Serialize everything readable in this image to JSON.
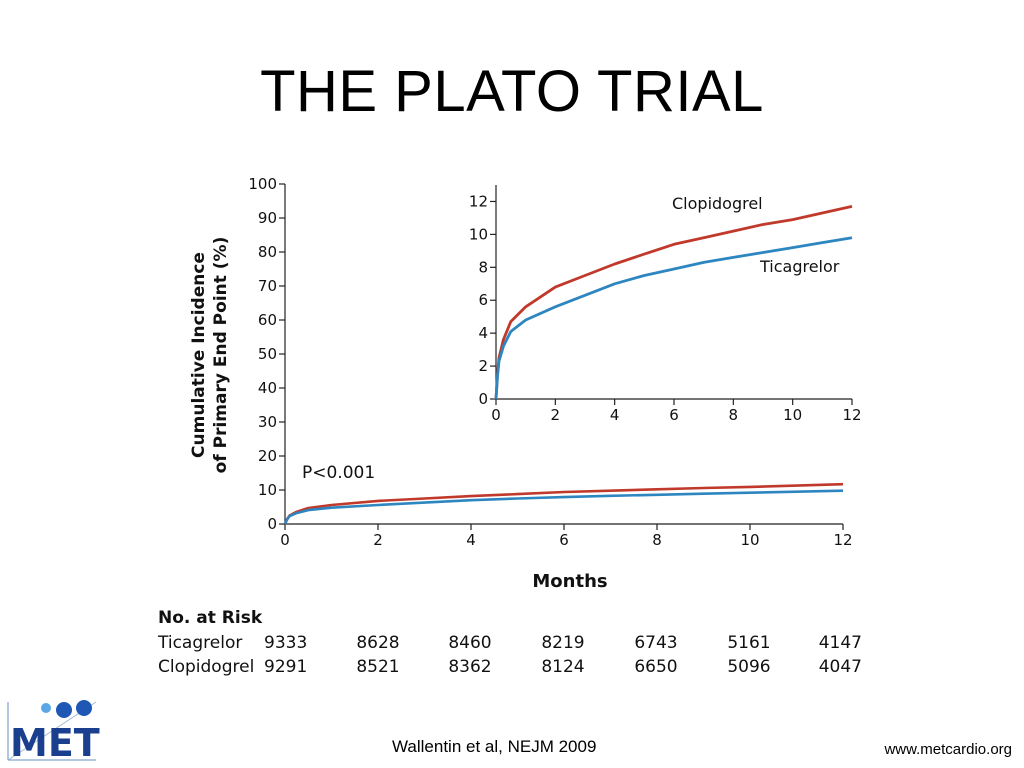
{
  "slide": {
    "title": "THE PLATO TRIAL",
    "citation": "Wallentin et al, NEJM 2009",
    "url": "www.metcardio.org",
    "logo_text": "MET"
  },
  "chart_data": [
    {
      "type": "line",
      "panel": "main",
      "ylabel_line1": "Cumulative Incidence",
      "ylabel_line2": "of Primary End Point (%)",
      "xlabel": "Months",
      "ylim": [
        0,
        100
      ],
      "xlim": [
        0,
        12
      ],
      "yticks": [
        0,
        10,
        20,
        30,
        40,
        50,
        60,
        70,
        80,
        90,
        100
      ],
      "xticks": [
        0,
        2,
        4,
        6,
        8,
        10,
        12
      ],
      "annotation": "P<0.001",
      "grid": false,
      "x": [
        0,
        0.05,
        0.1,
        0.25,
        0.5,
        1,
        2,
        3,
        4,
        5,
        6,
        7,
        8,
        9,
        10,
        11,
        12
      ],
      "series": [
        {
          "name": "Clopidogrel",
          "color": "#c0392b",
          "values": [
            0,
            1.5,
            2.5,
            3.6,
            4.7,
            5.6,
            6.8,
            7.5,
            8.2,
            8.8,
            9.4,
            9.8,
            10.2,
            10.6,
            10.9,
            11.3,
            11.7
          ]
        },
        {
          "name": "Ticagrelor",
          "color": "#2e86c1",
          "values": [
            0,
            1.4,
            2.3,
            3.2,
            4.1,
            4.8,
            5.6,
            6.3,
            7.0,
            7.5,
            7.9,
            8.3,
            8.6,
            8.9,
            9.2,
            9.5,
            9.8
          ]
        }
      ]
    },
    {
      "type": "line",
      "panel": "inset",
      "ylim": [
        0,
        13
      ],
      "xlim": [
        0,
        12
      ],
      "yticks": [
        0,
        2,
        4,
        6,
        8,
        10,
        12
      ],
      "xticks": [
        0,
        2,
        4,
        6,
        8,
        10,
        12
      ],
      "grid": false,
      "x": [
        0,
        0.05,
        0.1,
        0.25,
        0.5,
        1,
        2,
        3,
        4,
        5,
        6,
        7,
        8,
        9,
        10,
        11,
        12
      ],
      "series": [
        {
          "name": "Clopidogrel",
          "color": "#c0392b",
          "values": [
            0,
            1.5,
            2.5,
            3.6,
            4.7,
            5.6,
            6.8,
            7.5,
            8.2,
            8.8,
            9.4,
            9.8,
            10.2,
            10.6,
            10.9,
            11.3,
            11.7
          ]
        },
        {
          "name": "Ticagrelor",
          "color": "#2e86c1",
          "values": [
            0,
            1.4,
            2.3,
            3.2,
            4.1,
            4.8,
            5.6,
            6.3,
            7.0,
            7.5,
            7.9,
            8.3,
            8.6,
            8.9,
            9.2,
            9.5,
            9.8
          ]
        }
      ]
    },
    {
      "type": "table",
      "title": "No. at Risk",
      "rows": [
        {
          "label": "Ticagrelor",
          "values": [
            "9333",
            "8628",
            "8460",
            "8219",
            "6743",
            "5161",
            "4147"
          ]
        },
        {
          "label": "Clopidogrel",
          "values": [
            "9291",
            "8521",
            "8362",
            "8124",
            "6650",
            "5096",
            "4047"
          ]
        }
      ]
    }
  ]
}
